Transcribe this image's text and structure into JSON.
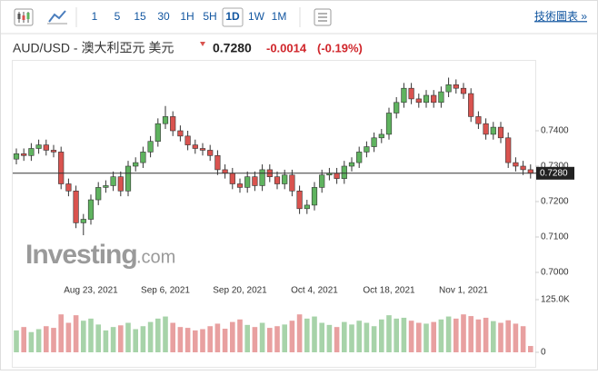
{
  "toolbar": {
    "intervals": [
      "1",
      "5",
      "15",
      "30",
      "1H",
      "5H",
      "1D",
      "1W",
      "1M"
    ],
    "active": 6,
    "link": "技術圖表 »"
  },
  "header": {
    "title": "AUD/USD - 澳大利亞元 美元",
    "price": "0.7280",
    "change": "-0.0014",
    "change_pct": "(-0.19%)"
  },
  "watermark": {
    "brand": "Investing",
    "suffix": ".com"
  },
  "chart_data": {
    "type": "candlestick",
    "categories": [
      null,
      null,
      null,
      null,
      null,
      null,
      null,
      null,
      null,
      null,
      "Aug 23, 2021",
      null,
      null,
      null,
      null,
      null,
      null,
      null,
      null,
      null,
      "Sep 6, 2021",
      null,
      null,
      null,
      null,
      null,
      null,
      null,
      null,
      null,
      "Sep 20, 2021",
      null,
      null,
      null,
      null,
      null,
      null,
      null,
      null,
      null,
      "Oct 4, 2021",
      null,
      null,
      null,
      null,
      null,
      null,
      null,
      null,
      null,
      "Oct 18, 2021",
      null,
      null,
      null,
      null,
      null,
      null,
      null,
      null,
      null,
      "Nov 1, 2021",
      null,
      null,
      null,
      null,
      null,
      null,
      null,
      null,
      null
    ],
    "open": [
      0.732,
      0.7335,
      0.733,
      0.735,
      0.736,
      0.7345,
      0.734,
      0.725,
      0.723,
      0.714,
      0.715,
      0.7205,
      0.724,
      0.7245,
      0.727,
      0.723,
      0.73,
      0.731,
      0.734,
      0.737,
      0.742,
      0.744,
      0.74,
      0.7385,
      0.736,
      0.735,
      0.7345,
      0.733,
      0.729,
      0.728,
      0.725,
      0.724,
      0.727,
      0.7245,
      0.729,
      0.727,
      0.725,
      0.7275,
      0.723,
      0.718,
      0.719,
      0.724,
      0.7275,
      0.728,
      0.7265,
      0.73,
      0.731,
      0.734,
      0.7355,
      0.738,
      0.739,
      0.745,
      0.748,
      0.752,
      0.749,
      0.748,
      0.75,
      0.748,
      0.751,
      0.753,
      0.752,
      0.7505,
      0.744,
      0.742,
      0.739,
      0.741,
      0.738,
      0.731,
      0.73,
      0.729
    ],
    "high": [
      0.735,
      0.735,
      0.7365,
      0.7375,
      0.7375,
      0.736,
      0.7355,
      0.7265,
      0.7245,
      0.7165,
      0.722,
      0.7255,
      0.726,
      0.7285,
      0.7285,
      0.7315,
      0.7325,
      0.7355,
      0.7385,
      0.7435,
      0.747,
      0.7455,
      0.7415,
      0.74,
      0.7375,
      0.7365,
      0.736,
      0.7345,
      0.7305,
      0.7295,
      0.7265,
      0.7285,
      0.7285,
      0.7305,
      0.7305,
      0.7285,
      0.729,
      0.729,
      0.7245,
      0.7205,
      0.7255,
      0.729,
      0.7295,
      0.7295,
      0.7315,
      0.7325,
      0.7355,
      0.737,
      0.7395,
      0.7405,
      0.7465,
      0.7495,
      0.7535,
      0.7535,
      0.7505,
      0.7515,
      0.7515,
      0.7525,
      0.755,
      0.7545,
      0.7535,
      0.752,
      0.7455,
      0.7435,
      0.7425,
      0.7425,
      0.7395,
      0.7325,
      0.7315,
      0.7305
    ],
    "low": [
      0.7305,
      0.7315,
      0.7315,
      0.7335,
      0.733,
      0.7325,
      0.7235,
      0.7215,
      0.7125,
      0.7105,
      0.7135,
      0.719,
      0.7225,
      0.723,
      0.7215,
      0.7215,
      0.7285,
      0.7295,
      0.7325,
      0.7355,
      0.7405,
      0.7385,
      0.737,
      0.7345,
      0.7335,
      0.733,
      0.7315,
      0.7275,
      0.7265,
      0.7235,
      0.7225,
      0.7225,
      0.723,
      0.723,
      0.7255,
      0.7235,
      0.7235,
      0.7215,
      0.7165,
      0.7165,
      0.7175,
      0.7225,
      0.726,
      0.725,
      0.725,
      0.7285,
      0.7295,
      0.7325,
      0.734,
      0.7365,
      0.7375,
      0.7435,
      0.7465,
      0.7475,
      0.7465,
      0.7465,
      0.7465,
      0.7465,
      0.7495,
      0.7505,
      0.749,
      0.7425,
      0.7405,
      0.7375,
      0.7375,
      0.7365,
      0.7295,
      0.7285,
      0.7275,
      0.7265
    ],
    "close": [
      0.7335,
      0.733,
      0.735,
      0.736,
      0.7345,
      0.734,
      0.725,
      0.723,
      0.714,
      0.715,
      0.7205,
      0.724,
      0.7245,
      0.727,
      0.723,
      0.73,
      0.731,
      0.734,
      0.737,
      0.742,
      0.744,
      0.74,
      0.7385,
      0.736,
      0.735,
      0.7345,
      0.733,
      0.729,
      0.728,
      0.725,
      0.724,
      0.727,
      0.7245,
      0.729,
      0.727,
      0.725,
      0.7275,
      0.723,
      0.718,
      0.719,
      0.724,
      0.7275,
      0.728,
      0.7265,
      0.73,
      0.731,
      0.734,
      0.7355,
      0.738,
      0.739,
      0.745,
      0.748,
      0.752,
      0.749,
      0.748,
      0.75,
      0.748,
      0.751,
      0.753,
      0.752,
      0.7505,
      0.744,
      0.742,
      0.739,
      0.741,
      0.738,
      0.731,
      0.73,
      0.729,
      0.728
    ],
    "up_color": "#5fb35f",
    "down_color": "#d9534f",
    "ylim": [
      0.697,
      0.767
    ],
    "yticks": [
      {
        "value": 0.7,
        "label": "0.7000"
      },
      {
        "value": 0.71,
        "label": "0.7100"
      },
      {
        "value": 0.72,
        "label": "0.7200"
      },
      {
        "value": 0.73,
        "label": "0.7300"
      },
      {
        "value": 0.74,
        "label": "0.7400"
      }
    ],
    "last_price": {
      "value": 0.728,
      "label": "0.7280"
    },
    "volume": {
      "values": [
        52000,
        60000,
        48000,
        55000,
        62000,
        58000,
        90000,
        70000,
        88000,
        75000,
        80000,
        66000,
        52000,
        60000,
        64000,
        70000,
        55000,
        62000,
        72000,
        80000,
        85000,
        70000,
        60000,
        58000,
        52000,
        55000,
        62000,
        68000,
        56000,
        72000,
        78000,
        65000,
        60000,
        70000,
        58000,
        62000,
        66000,
        75000,
        90000,
        80000,
        85000,
        70000,
        65000,
        60000,
        72000,
        66000,
        75000,
        70000,
        62000,
        78000,
        88000,
        80000,
        82000,
        75000,
        70000,
        68000,
        72000,
        78000,
        85000,
        80000,
        90000,
        86000,
        78000,
        82000,
        74000,
        70000,
        76000,
        68000,
        62000,
        15000
      ],
      "up_color": "#a7d3a9",
      "down_color": "#e8a0a0",
      "ylim": [
        0,
        125000
      ],
      "yticks": [
        0,
        {
          "value": 125000,
          "label": "125.0K"
        }
      ]
    }
  }
}
